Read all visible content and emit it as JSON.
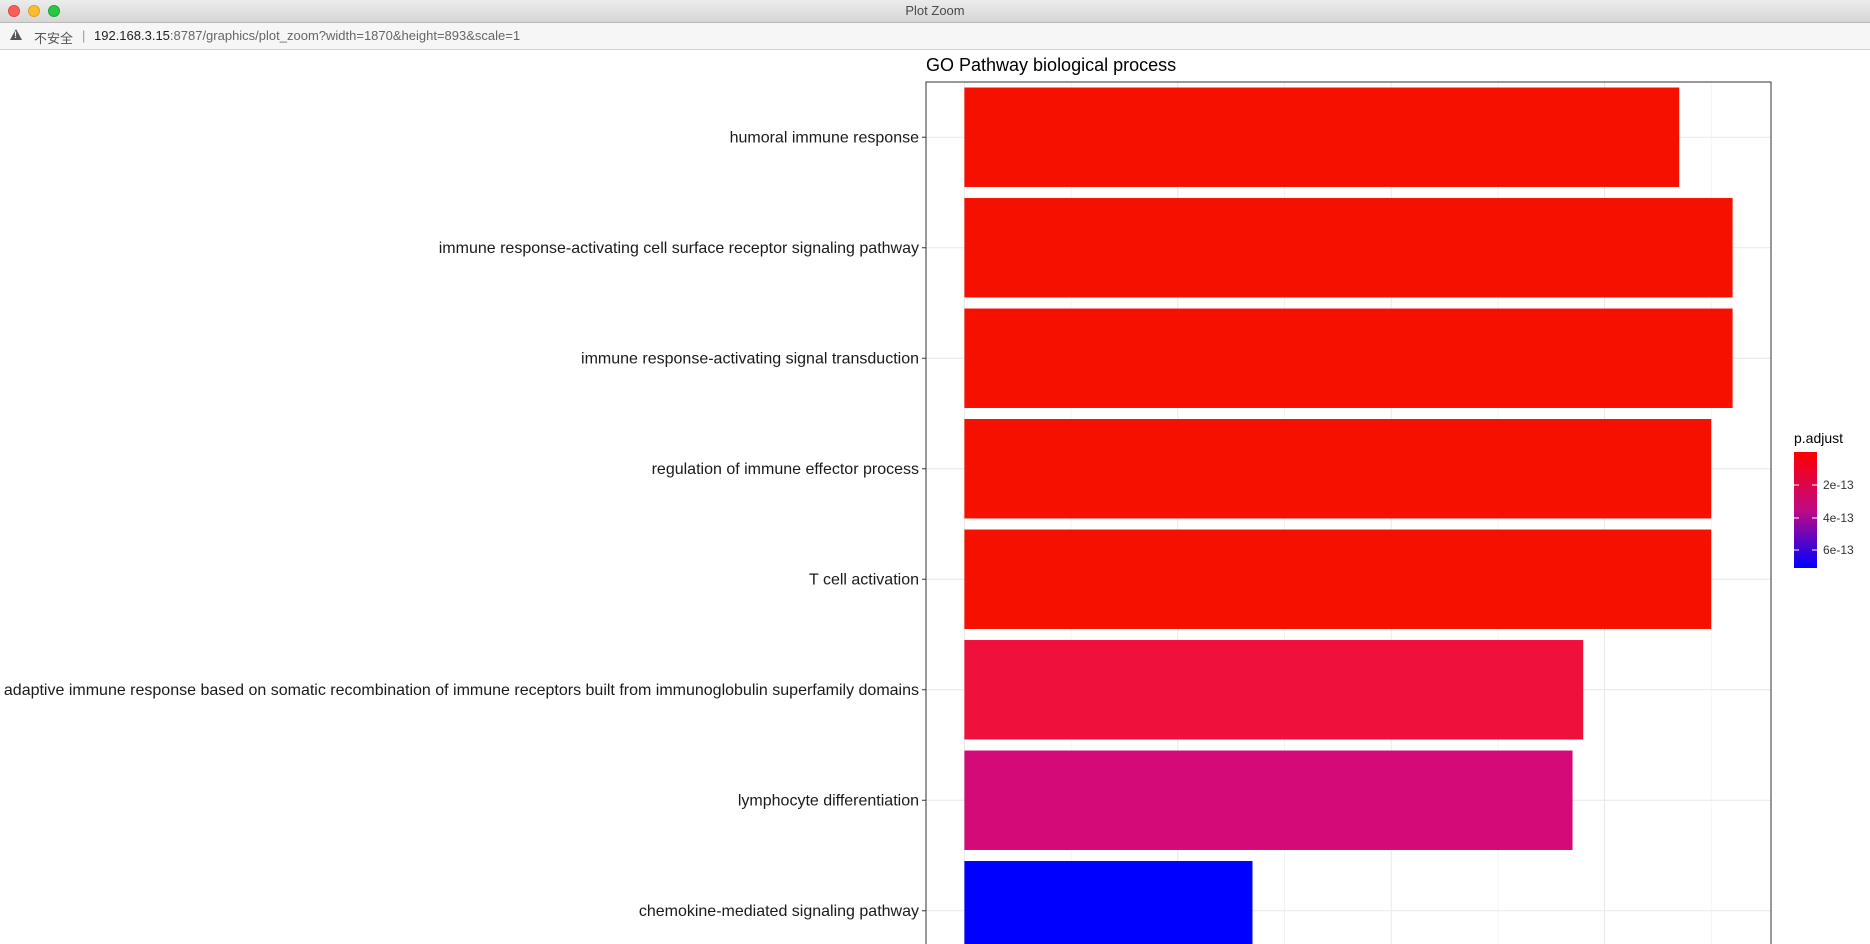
{
  "window": {
    "title": "Plot Zoom"
  },
  "address_bar": {
    "security_label": "不安全",
    "separator": "|",
    "url_host": "192.168.3.15",
    "url_rest": ":8787/graphics/plot_zoom?width=1870&height=893&scale=1"
  },
  "chart_data": {
    "type": "bar",
    "orientation": "horizontal",
    "title": "GO Pathway biological process",
    "xlabel": "",
    "ylabel": "",
    "xlim": [
      -3.6,
      75.6
    ],
    "xticks": [
      0,
      20,
      40,
      60
    ],
    "grid": true,
    "categories": [
      "humoral immune response",
      "immune response-activating cell surface receptor signaling pathway",
      "immune response-activating signal transduction",
      "regulation of immune effector process",
      "T cell activation",
      "adaptive immune response based on somatic recombination of immune receptors built from immunoglobulin superfamily domains",
      "lymphocyte differentiation",
      "chemokine-mediated signaling pathway"
    ],
    "values": [
      67,
      72,
      72,
      70,
      70,
      58,
      57,
      27
    ],
    "colors": [
      "#f51000",
      "#f51000",
      "#f51000",
      "#f51000",
      "#f51000",
      "#f0103c",
      "#d40a78",
      "#0000ff"
    ],
    "legend": {
      "title": "p.adjust",
      "position": "right",
      "labels": [
        "2e-13",
        "4e-13",
        "6e-13"
      ],
      "gradient": [
        "#ff0000",
        "#c00a84",
        "#0000ff"
      ]
    }
  }
}
